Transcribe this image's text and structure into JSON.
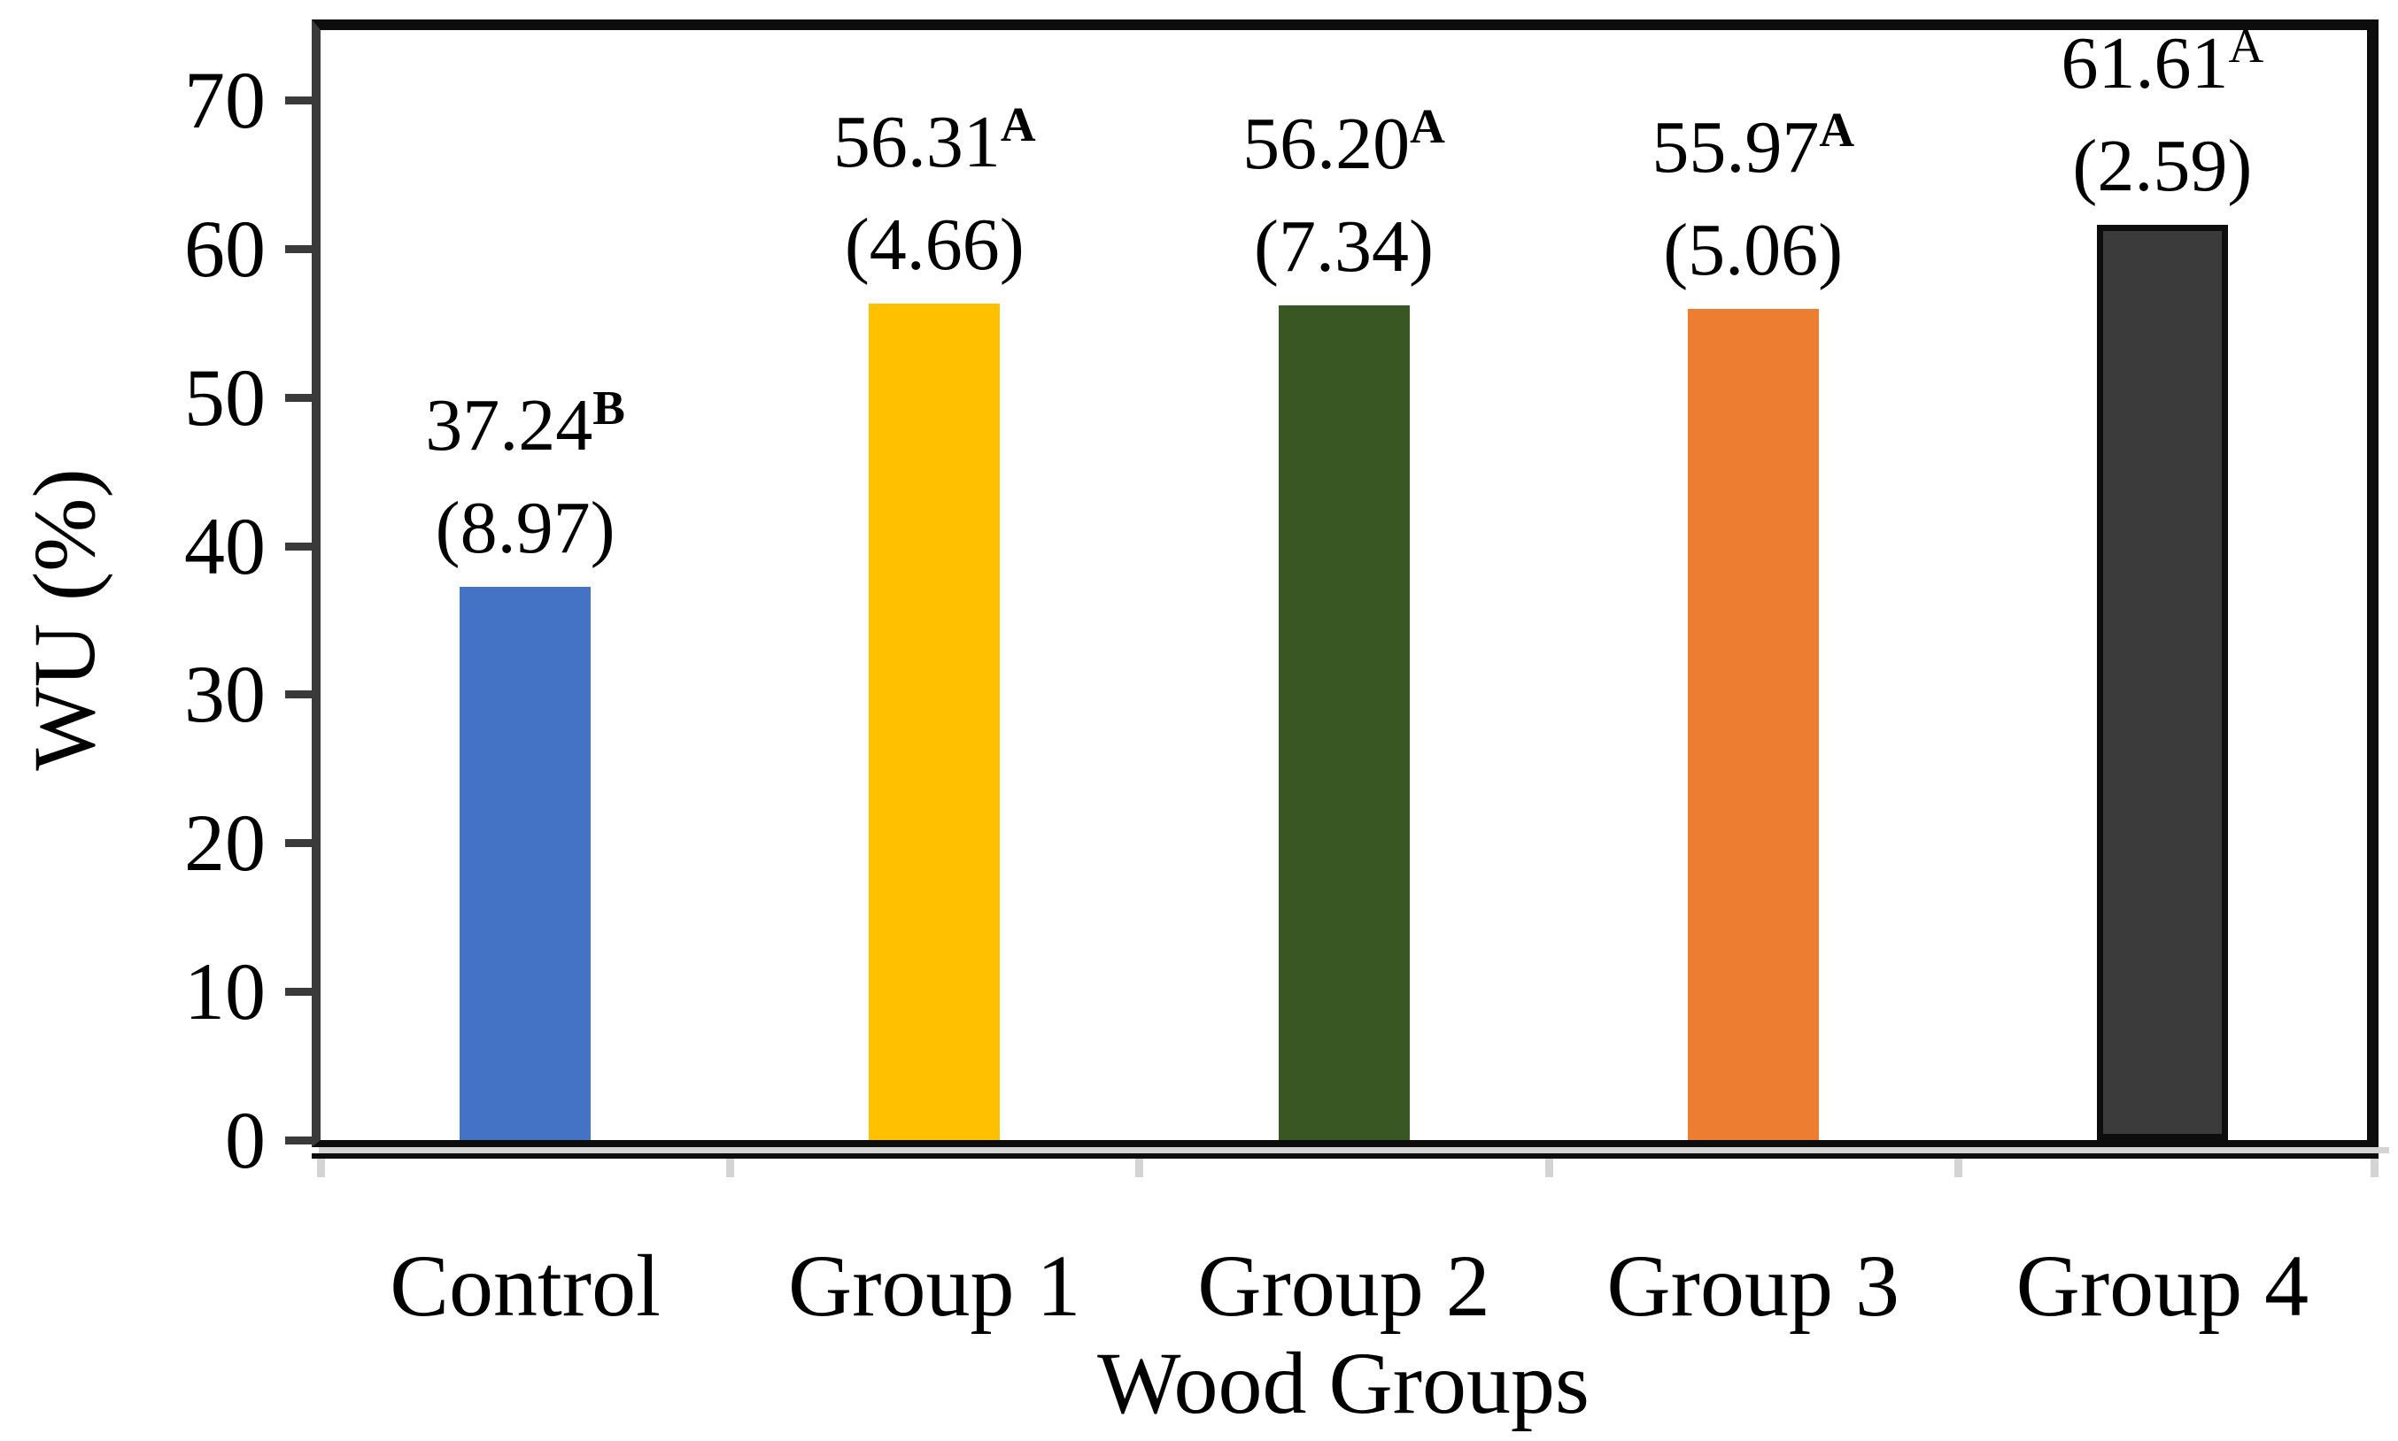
{
  "chart_data": {
    "type": "bar",
    "title": "",
    "xlabel": "Wood Groups",
    "ylabel": "WU (%)",
    "categories": [
      "Control",
      "Group 1",
      "Group 2",
      "Group 3",
      "Group 4"
    ],
    "values": [
      37.24,
      56.31,
      56.2,
      55.97,
      61.61
    ],
    "value_labels": [
      "37.24",
      "56.31",
      "56.20",
      "55.97",
      "61.61"
    ],
    "sd_labels": [
      "(8.97)",
      "(4.66)",
      "(7.34)",
      "(5.06)",
      "(2.59)"
    ],
    "significance_letters": [
      "B",
      "A",
      "A",
      "A",
      "A"
    ],
    "significance_bold": [
      true,
      true,
      true,
      true,
      false
    ],
    "bar_colors": [
      "#4472C4",
      "#FFC000",
      "#385723",
      "#ED7D31",
      "#3B3B3B"
    ],
    "bar_border_colors": [
      null,
      null,
      null,
      null,
      "#0D0D0D"
    ],
    "ylim": [
      0,
      70
    ],
    "ytick_interval": 10,
    "ytick_labels": [
      "0",
      "10",
      "20",
      "30",
      "40",
      "50",
      "60",
      "70"
    ],
    "grid": false,
    "legend": false
  },
  "style_colors": {
    "plot_border": "#0D0D0D",
    "value_axis_line": "#3A3A3A",
    "shadow_gray": "#D4D4D4",
    "text": "#000000",
    "background": "#FFFFFF"
  }
}
